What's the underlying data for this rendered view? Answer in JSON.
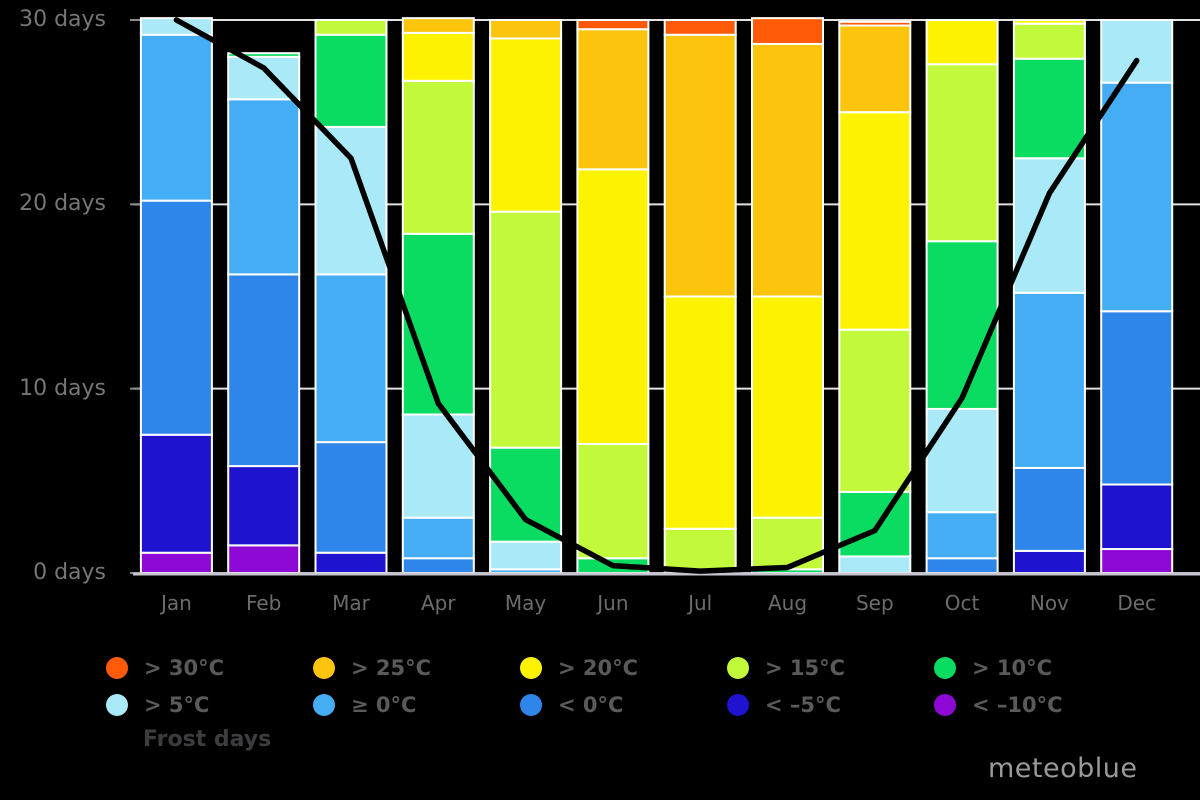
{
  "brand": "meteoblue",
  "legend": {
    "frost_label": "Frost days",
    "items": [
      {
        "label": "> 30°C",
        "color": "#ff5a07"
      },
      {
        "label": "> 25°C",
        "color": "#fcc40d"
      },
      {
        "label": "> 20°C",
        "color": "#fdf300"
      },
      {
        "label": "> 15°C",
        "color": "#c2f93b"
      },
      {
        "label": "> 10°C",
        "color": "#09dc60"
      },
      {
        "label": "> 5°C",
        "color": "#a9e9f8"
      },
      {
        "label": "≥ 0°C",
        "color": "#45adf3"
      },
      {
        "label": "< 0°C",
        "color": "#2e86ea"
      },
      {
        "label": "< –5°C",
        "color": "#2013cf"
      },
      {
        "label": "< –10°C",
        "color": "#8f09d6"
      }
    ]
  },
  "chart_data": {
    "type": "bar",
    "subtype": "stacked-bars-with-line-overlay",
    "title": "",
    "xlabel": "",
    "ylabel": "days",
    "ylim": [
      0,
      30
    ],
    "grid": true,
    "background": "#000000",
    "categories": [
      "Jan",
      "Feb",
      "Mar",
      "Apr",
      "May",
      "Jun",
      "Jul",
      "Aug",
      "Sep",
      "Oct",
      "Nov",
      "Dec"
    ],
    "yticks": [
      {
        "value": 0,
        "label": "0 days"
      },
      {
        "value": 10,
        "label": "10 days"
      },
      {
        "value": 20,
        "label": "20 days"
      },
      {
        "value": 30,
        "label": "30 days"
      }
    ],
    "series": [
      {
        "name": "> 30°C",
        "color": "#ff5a07",
        "values": [
          0,
          0,
          0,
          0,
          0,
          0.5,
          0.8,
          1.4,
          0.2,
          0,
          0,
          0
        ]
      },
      {
        "name": "> 25°C",
        "color": "#fcc40d",
        "values": [
          0,
          0,
          0,
          0.8,
          1.0,
          7.6,
          14.2,
          13.7,
          4.7,
          0,
          0,
          0
        ]
      },
      {
        "name": "> 20°C",
        "color": "#fdf300",
        "values": [
          0,
          0,
          0,
          2.6,
          9.4,
          14.9,
          12.6,
          12.0,
          11.8,
          2.4,
          0.2,
          0
        ]
      },
      {
        "name": "> 15°C",
        "color": "#c2f93b",
        "values": [
          0,
          0,
          0.8,
          8.3,
          12.8,
          6.2,
          2.4,
          2.8,
          8.8,
          9.6,
          1.9,
          0
        ]
      },
      {
        "name": "> 10°C",
        "color": "#09dc60",
        "values": [
          0,
          0.2,
          5.0,
          9.8,
          5.1,
          0.8,
          0,
          0.2,
          3.5,
          9.1,
          5.4,
          0
        ]
      },
      {
        "name": "> 5°C",
        "color": "#a9e9f8",
        "values": [
          0.9,
          2.3,
          8.0,
          5.6,
          1.5,
          0,
          0,
          0,
          0.9,
          5.6,
          7.3,
          3.4
        ]
      },
      {
        "name": "≥ 0°C",
        "color": "#45adf3",
        "values": [
          9.0,
          9.5,
          9.1,
          2.2,
          0.2,
          0,
          0,
          0,
          0,
          2.5,
          9.5,
          12.4
        ]
      },
      {
        "name": "< 0°C",
        "color": "#2e86ea",
        "values": [
          12.7,
          10.4,
          6.0,
          0.8,
          0,
          0,
          0,
          0,
          0,
          0.8,
          4.5,
          9.4
        ]
      },
      {
        "name": "< –5°C",
        "color": "#2013cf",
        "values": [
          6.4,
          4.3,
          1.1,
          0,
          0,
          0,
          0,
          0,
          0,
          0,
          1.2,
          3.5
        ]
      },
      {
        "name": "< –10°C",
        "color": "#8f09d6",
        "values": [
          1.1,
          1.5,
          0,
          0,
          0,
          0,
          0,
          0,
          0,
          0,
          0,
          1.3
        ]
      }
    ],
    "line": {
      "name": "Frost days",
      "color": "#000000",
      "values": [
        30,
        27.4,
        22.5,
        9.2,
        2.9,
        0.4,
        0.1,
        0.3,
        2.3,
        9.5,
        20.6,
        27.8
      ]
    }
  }
}
